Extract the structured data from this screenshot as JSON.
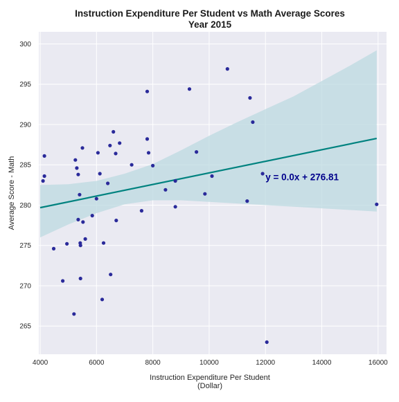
{
  "chart_data": {
    "type": "scatter",
    "title": "Instruction Expenditure Per Student vs Math Average Scores",
    "subtitle": "Year 2015",
    "xlabel": "Instruction Expenditure Per Student",
    "xlabel_unit": "(Dollar)",
    "ylabel": "Average Score - Math",
    "xlim": [
      3950,
      16300
    ],
    "ylim": [
      261.5,
      301.5
    ],
    "xticks": [
      4000,
      6000,
      8000,
      10000,
      12000,
      14000,
      16000
    ],
    "yticks": [
      265,
      270,
      275,
      280,
      285,
      290,
      295,
      300
    ],
    "grid": true,
    "background": "#eaeaf2",
    "colors": {
      "points": "#2a2a9a",
      "regression": "#00827f",
      "band": "#bcd9e0",
      "annotation": "#00008b"
    },
    "points": [
      [
        4150,
        286.1
      ],
      [
        4100,
        283.0
      ],
      [
        4150,
        283.6
      ],
      [
        4480,
        274.6
      ],
      [
        4800,
        270.6
      ],
      [
        4950,
        275.2
      ],
      [
        5200,
        266.5
      ],
      [
        5250,
        285.6
      ],
      [
        5300,
        284.6
      ],
      [
        5350,
        283.8
      ],
      [
        5350,
        278.2
      ],
      [
        5400,
        281.3
      ],
      [
        5420,
        275.3
      ],
      [
        5430,
        275.0
      ],
      [
        5430,
        270.9
      ],
      [
        5500,
        287.1
      ],
      [
        5520,
        277.9
      ],
      [
        5600,
        275.8
      ],
      [
        5850,
        278.7
      ],
      [
        6000,
        280.8
      ],
      [
        6050,
        286.5
      ],
      [
        6120,
        283.9
      ],
      [
        6200,
        268.3
      ],
      [
        6250,
        275.3
      ],
      [
        6400,
        282.7
      ],
      [
        6480,
        287.4
      ],
      [
        6500,
        271.4
      ],
      [
        6600,
        289.1
      ],
      [
        6680,
        286.4
      ],
      [
        6700,
        278.1
      ],
      [
        6820,
        287.7
      ],
      [
        7250,
        285.0
      ],
      [
        7600,
        279.3
      ],
      [
        7800,
        294.1
      ],
      [
        7800,
        288.2
      ],
      [
        7850,
        286.5
      ],
      [
        8000,
        284.9
      ],
      [
        8450,
        281.9
      ],
      [
        8800,
        283.0
      ],
      [
        8800,
        279.8
      ],
      [
        9300,
        294.4
      ],
      [
        9550,
        286.6
      ],
      [
        9850,
        281.4
      ],
      [
        10100,
        283.6
      ],
      [
        10650,
        296.9
      ],
      [
        11350,
        280.5
      ],
      [
        11450,
        293.3
      ],
      [
        11550,
        290.3
      ],
      [
        11900,
        283.9
      ],
      [
        12050,
        263.0
      ],
      [
        15950,
        280.1
      ]
    ],
    "regression": {
      "intercept": 276.81,
      "slope": 0.000719,
      "x_range": [
        4000,
        15950
      ]
    },
    "confidence_band": [
      {
        "x": 4000,
        "low": 276.0,
        "high": 282.5
      },
      {
        "x": 5000,
        "low": 277.6,
        "high": 282.6
      },
      {
        "x": 6000,
        "low": 279.0,
        "high": 283.0
      },
      {
        "x": 7000,
        "low": 280.1,
        "high": 283.9
      },
      {
        "x": 8000,
        "low": 280.6,
        "high": 285.1
      },
      {
        "x": 9000,
        "low": 280.6,
        "high": 286.8
      },
      {
        "x": 10000,
        "low": 280.4,
        "high": 288.6
      },
      {
        "x": 11000,
        "low": 280.2,
        "high": 290.3
      },
      {
        "x": 12000,
        "low": 280.0,
        "high": 291.9
      },
      {
        "x": 13000,
        "low": 279.8,
        "high": 293.5
      },
      {
        "x": 14000,
        "low": 279.6,
        "high": 295.4
      },
      {
        "x": 15000,
        "low": 279.4,
        "high": 297.3
      },
      {
        "x": 15950,
        "low": 279.2,
        "high": 299.2
      }
    ],
    "annotation": {
      "text": "y = 0.0x + 276.81",
      "x": 12000,
      "y": 283.1
    }
  }
}
